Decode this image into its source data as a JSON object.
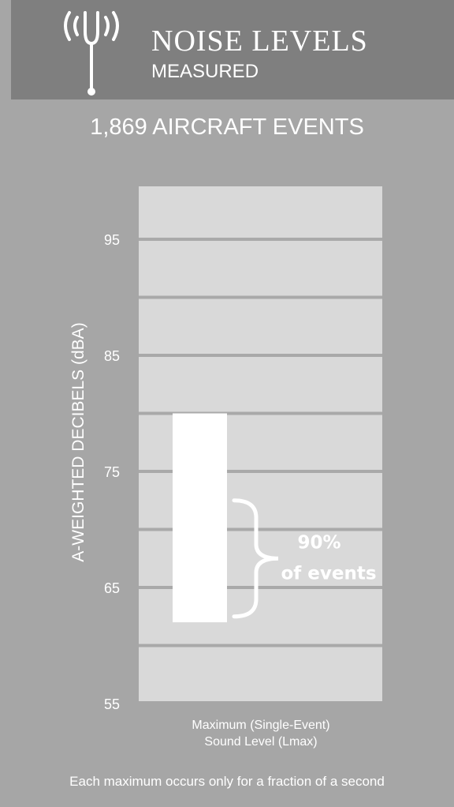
{
  "header": {
    "title": "NOISE LEVELS",
    "subtitle": "MEASURED",
    "icon": "tuning-fork-broadcast-icon"
  },
  "events_count": "1,869 AIRCRAFT EVENTS",
  "footnote": "Each maximum occurs only for a fraction of a second",
  "colors": {
    "header_bg": "#7f7f7f",
    "page_bg": "#a6a6a6",
    "plot_bg": "#d9d9d9",
    "bar": "#ffffff"
  },
  "chart_data": {
    "type": "bar",
    "categories": [
      "Maximum  (Single-Event)\nSound  Level  (Lmax)"
    ],
    "range_bar": {
      "low": 62,
      "high": 80
    },
    "ylabel": "A-WEIGHTED DECIBELS (dBA)",
    "xlabel_lines": [
      "Maximum  (Single-Event)",
      "Sound  Level  (Lmax)"
    ],
    "ylim": [
      55,
      100
    ],
    "yticks": [
      55,
      65,
      75,
      85,
      95
    ],
    "gridlines": [
      60,
      65,
      70,
      75,
      80,
      85,
      90,
      95
    ],
    "grid": true,
    "annotation": {
      "lines": [
        "90%",
        "of events"
      ],
      "low": 62.5,
      "high": 72.5
    }
  }
}
